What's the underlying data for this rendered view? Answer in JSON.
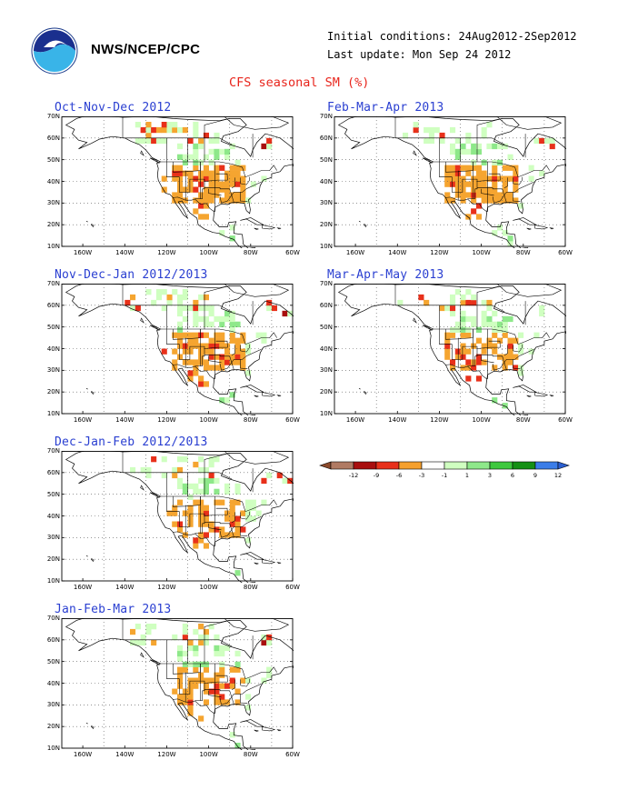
{
  "header": {
    "agency": "NWS/NCEP/CPC",
    "initial_conditions": "Initial conditions: 24Aug2012-2Sep2012",
    "last_update": "Last update: Mon Sep 24 2012",
    "title": "CFS seasonal SM (%)",
    "logo_icon": "noaa-logo-icon"
  },
  "axis": {
    "lat_labels": [
      "70N",
      "60N",
      "50N",
      "40N",
      "30N",
      "20N",
      "10N"
    ],
    "lon_labels": [
      "160W",
      "140W",
      "120W",
      "100W",
      "80W",
      "60W"
    ]
  },
  "panels": [
    {
      "title": "Oct-Nov-Dec 2012",
      "variant": 0
    },
    {
      "title": "Feb-Mar-Apr 2013",
      "variant": 1
    },
    {
      "title": "Nov-Dec-Jan 2012/2013",
      "variant": 2
    },
    {
      "title": "Mar-Apr-May 2013",
      "variant": 3
    },
    {
      "title": "Dec-Jan-Feb 2012/2013",
      "variant": 4
    },
    {
      "title": "Jan-Feb-Mar 2013",
      "variant": 5
    }
  ],
  "colorbar": {
    "labels": [
      "-12",
      "-9",
      "-6",
      "-3",
      "-1",
      "1",
      "3",
      "6",
      "9",
      "12"
    ],
    "colors": [
      "#8b4a2b",
      "#b07a63",
      "#a80e0e",
      "#e8301a",
      "#f5a02e",
      "#ffffff",
      "#cfffc0",
      "#8ee88a",
      "#3ec83e",
      "#159015",
      "#3b7de8",
      "#2b5fd0"
    ]
  }
}
